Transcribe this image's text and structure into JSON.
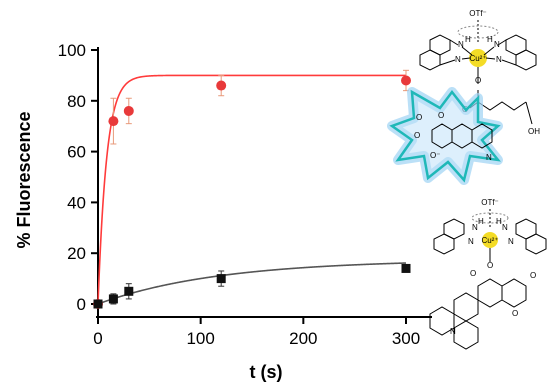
{
  "chart_data": {
    "type": "scatter",
    "xlabel": "t (s)",
    "ylabel": "% Fluorescence",
    "xlim": [
      0,
      310
    ],
    "ylim": [
      -4,
      104
    ],
    "xticks": [
      0,
      100,
      200,
      300
    ],
    "yticks": [
      0,
      20,
      40,
      60,
      80,
      100
    ],
    "series": [
      {
        "color": "#e8393a",
        "marker": "circle",
        "points": [
          {
            "x": 0,
            "y": 0,
            "err": 0
          },
          {
            "x": 15,
            "y": 72,
            "err": 9
          },
          {
            "x": 30,
            "y": 76,
            "err": 5
          },
          {
            "x": 120,
            "y": 86,
            "err": 4
          },
          {
            "x": 300,
            "y": 88,
            "err": 4
          }
        ],
        "fit": {
          "model": "saturation",
          "ymax": 90,
          "k": 0.12
        }
      },
      {
        "color": "#111111",
        "marker": "square",
        "points": [
          {
            "x": 0,
            "y": 0,
            "err": 0
          },
          {
            "x": 15,
            "y": 2,
            "err": 2
          },
          {
            "x": 30,
            "y": 5,
            "err": 3
          },
          {
            "x": 120,
            "y": 10,
            "err": 3
          },
          {
            "x": 300,
            "y": 14,
            "err": 1
          }
        ],
        "fit": {
          "model": "saturation",
          "ymax": 17.5,
          "k": 0.0085
        }
      }
    ],
    "fit_color_red": "#ff3b3b",
    "fit_color_black": "#555555"
  },
  "structures": {
    "counterion_top": "OTf⁻",
    "counterion_bottom": "OTf⁻",
    "metal_top": "Cu²⁺",
    "metal_bottom": "Cu²⁺",
    "atoms": {
      "N": "N",
      "H": "H",
      "O": "O",
      "OH": "OH",
      "O_minus": "O⁻"
    },
    "highlight_color": "#f2d600",
    "burst_color": "#1fb8b8",
    "glow_color": "#9fd3f5"
  }
}
